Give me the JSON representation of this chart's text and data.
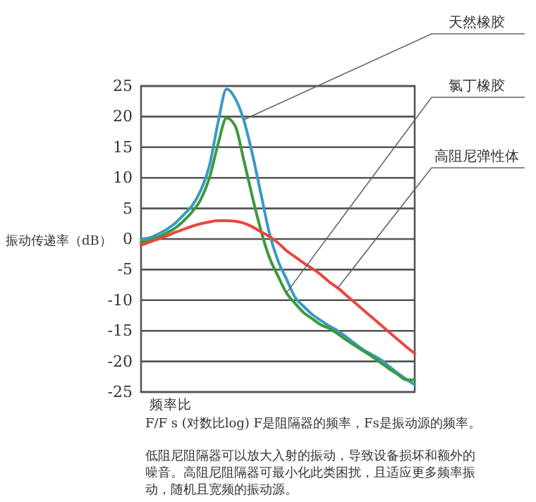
{
  "chart_data": {
    "type": "line",
    "ylabel": "振动传递率（dB）",
    "xlabel": "频率比",
    "categories": [
      null,
      null,
      null,
      null,
      null,
      null,
      null,
      null,
      null,
      null,
      null,
      null,
      null,
      null,
      null,
      null,
      null,
      null,
      null,
      null,
      null,
      null,
      null,
      null,
      null,
      null,
      null,
      null,
      null,
      null,
      null,
      null,
      null
    ],
    "series": [
      {
        "name": "天然橡胶",
        "color": "#3a9ac4",
        "values": [
          0,
          0.2,
          0.8,
          1.6,
          2.6,
          4,
          5.5,
          8,
          12,
          19,
          24.5,
          23,
          19.5,
          14,
          7.5,
          1,
          -3.5,
          -6.5,
          -9.5,
          -11,
          -12.3,
          -13.3,
          -14.2,
          -15,
          -16,
          -17.1,
          -18.1,
          -18.9,
          -19.7,
          -20.8,
          -21.9,
          -22.9,
          -23.8
        ]
      },
      {
        "name": "氯丁橡胶",
        "color": "#3c9a3c",
        "values": [
          -0.5,
          -0.2,
          0.3,
          1,
          1.8,
          3,
          4.5,
          6.5,
          10,
          15.5,
          19.8,
          18.5,
          13,
          7,
          1.5,
          -3,
          -6,
          -8.8,
          -10.5,
          -12,
          -13,
          -14,
          -14.6,
          -15.5,
          -16.5,
          -17.4,
          -18.3,
          -19.2,
          -20.2,
          -21.2,
          -22.1,
          -23,
          -23
        ]
      },
      {
        "name": "高阻尼弹性体",
        "color": "#e8473f",
        "values": [
          -1,
          -0.5,
          0,
          0.5,
          1.1,
          1.6,
          2.1,
          2.5,
          2.8,
          3,
          3,
          2.9,
          2.6,
          2,
          1.2,
          0.4,
          -0.6,
          -1.9,
          -2.9,
          -3.9,
          -4.8,
          -5.8,
          -7,
          -8,
          -9.2,
          -10.4,
          -11.6,
          -12.8,
          -14,
          -15.2,
          -16.4,
          -17.6,
          -18.7
        ]
      }
    ],
    "ylim": [
      -25,
      25
    ],
    "yticks": [
      -25,
      -20,
      -15,
      -10,
      -5,
      0,
      5,
      10,
      15,
      20,
      25
    ],
    "grid": "y",
    "line_style": "solid",
    "marker": "none",
    "annotations": [
      "F/F s (对数比log) F是阻隔器的频率，Fs是振动源的频率。",
      "低阻尼阻隔器可以放大入射的振动，导致设备损坏和额外的噪音。高阻尼阻隔器可最小化此类困扰，且适应更多频率振动，随机且宽频的振动源。"
    ]
  }
}
